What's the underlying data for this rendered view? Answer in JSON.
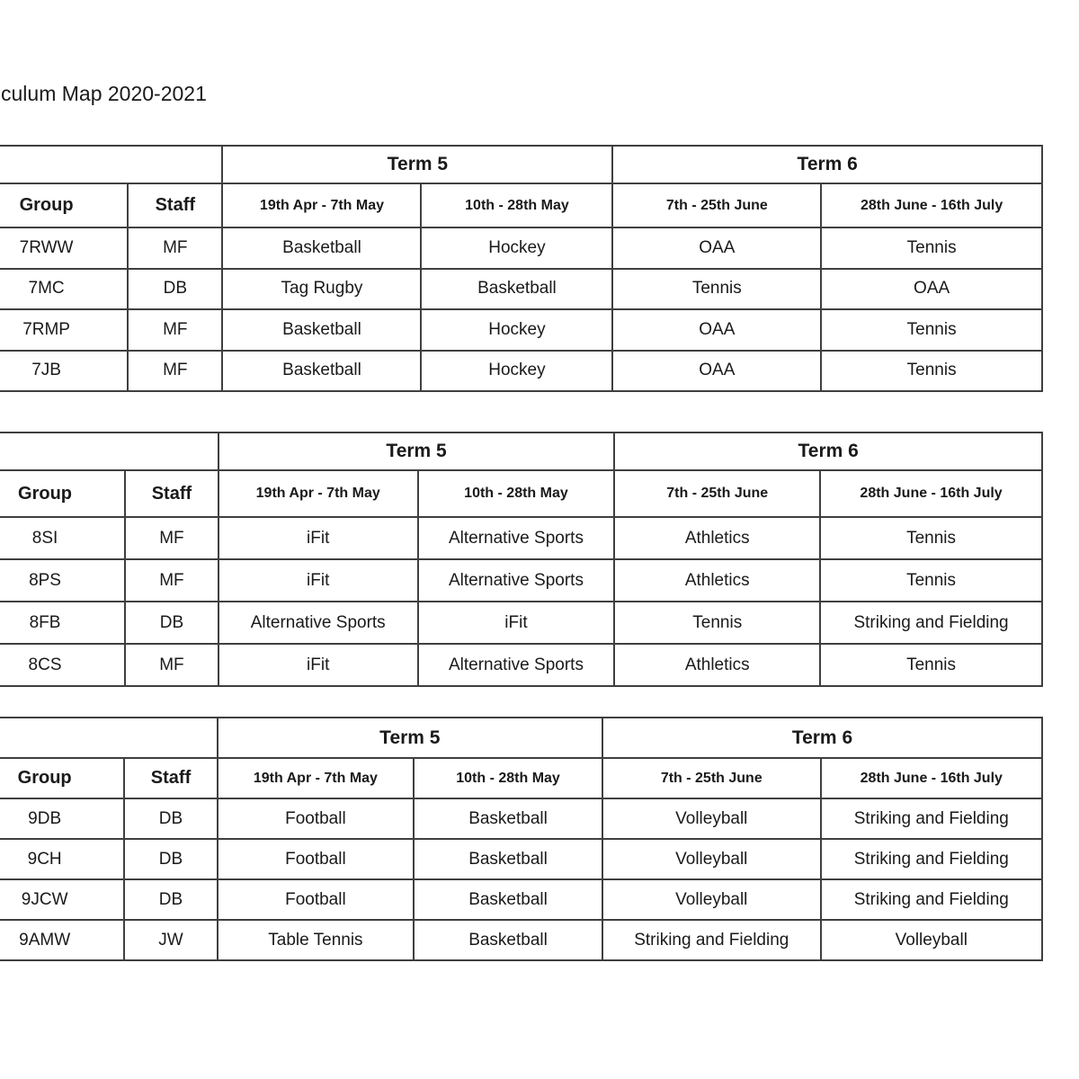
{
  "page": {
    "title": "culum Map 2020-2021",
    "background": "#ffffff",
    "text_color": "#1a1a1a",
    "border_color": "#3f3f3f"
  },
  "tables": [
    {
      "id": "year-7",
      "term_labels": [
        "Term 5",
        "Term 6"
      ],
      "group_header": "Group",
      "staff_header": "Staff",
      "period_headers": [
        "19th Apr - 7th May",
        "10th - 28th May",
        "7th - 25th June",
        "28th June - 16th July"
      ],
      "rows": [
        {
          "group": "7RWW",
          "staff": "MF",
          "activities": [
            "Basketball",
            "Hockey",
            "OAA",
            "Tennis"
          ]
        },
        {
          "group": "7MC",
          "staff": "DB",
          "activities": [
            "Tag Rugby",
            "Basketball",
            "Tennis",
            "OAA"
          ]
        },
        {
          "group": "7RMP",
          "staff": "MF",
          "activities": [
            "Basketball",
            "Hockey",
            "OAA",
            "Tennis"
          ]
        },
        {
          "group": "7JB",
          "staff": "MF",
          "activities": [
            "Basketball",
            "Hockey",
            "OAA",
            "Tennis"
          ]
        }
      ]
    },
    {
      "id": "year-8",
      "term_labels": [
        "Term 5",
        "Term 6"
      ],
      "group_header": "Group",
      "staff_header": "Staff",
      "period_headers": [
        "19th Apr - 7th May",
        "10th - 28th May",
        "7th - 25th June",
        "28th June - 16th July"
      ],
      "rows": [
        {
          "group": "8SI",
          "staff": "MF",
          "activities": [
            "iFit",
            "Alternative Sports",
            "Athletics",
            "Tennis"
          ]
        },
        {
          "group": "8PS",
          "staff": "MF",
          "activities": [
            "iFit",
            "Alternative Sports",
            "Athletics",
            "Tennis"
          ]
        },
        {
          "group": "8FB",
          "staff": "DB",
          "activities": [
            "Alternative Sports",
            "iFit",
            "Tennis",
            "Striking and Fielding"
          ]
        },
        {
          "group": "8CS",
          "staff": "MF",
          "activities": [
            "iFit",
            "Alternative Sports",
            "Athletics",
            "Tennis"
          ]
        }
      ]
    },
    {
      "id": "year-9",
      "term_labels": [
        "Term 5",
        "Term 6"
      ],
      "group_header": "Group",
      "staff_header": "Staff",
      "period_headers": [
        "19th Apr - 7th May",
        "10th - 28th May",
        "7th - 25th June",
        "28th June - 16th July"
      ],
      "rows": [
        {
          "group": "9DB",
          "staff": "DB",
          "activities": [
            "Football",
            "Basketball",
            "Volleyball",
            "Striking and Fielding"
          ]
        },
        {
          "group": "9CH",
          "staff": "DB",
          "activities": [
            "Football",
            "Basketball",
            "Volleyball",
            "Striking and Fielding"
          ]
        },
        {
          "group": "9JCW",
          "staff": "DB",
          "activities": [
            "Football",
            "Basketball",
            "Volleyball",
            "Striking and Fielding"
          ]
        },
        {
          "group": "9AMW",
          "staff": "JW",
          "activities": [
            "Table Tennis",
            "Basketball",
            "Striking and Fielding",
            "Volleyball"
          ]
        }
      ]
    }
  ]
}
